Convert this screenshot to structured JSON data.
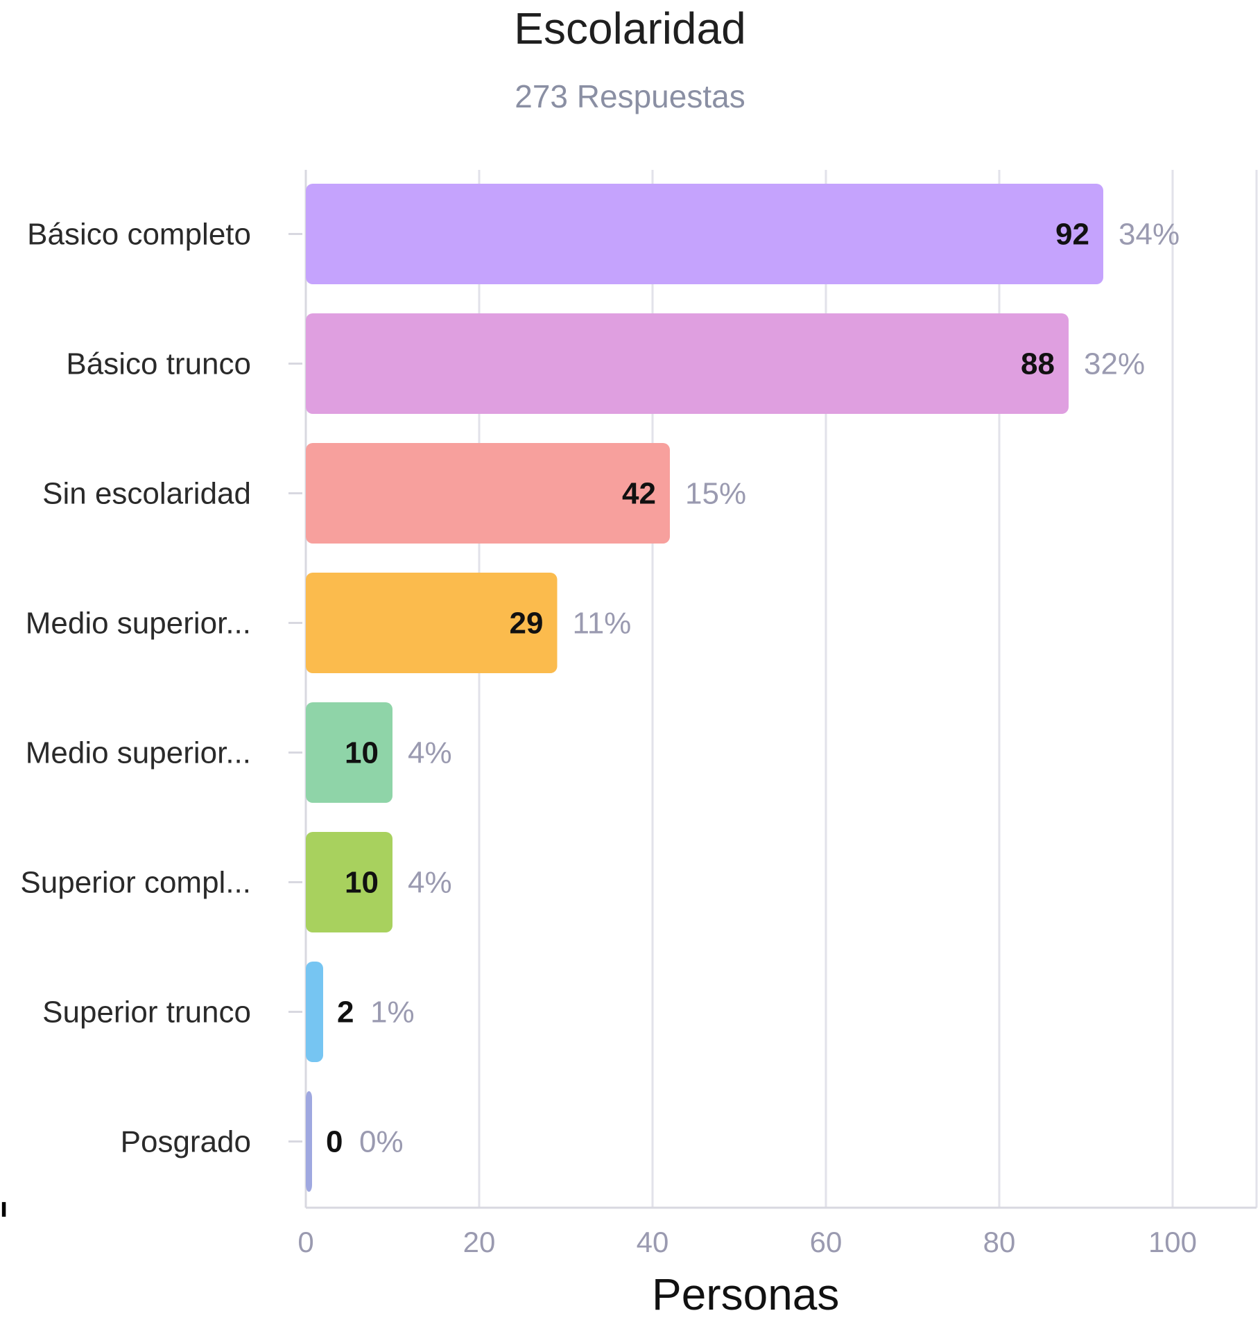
{
  "chart_data": {
    "type": "bar",
    "orientation": "horizontal",
    "title": "Escolaridad",
    "subtitle": "273 Respuestas",
    "xlabel": "Personas",
    "ylabel": "",
    "xlim": [
      0,
      110
    ],
    "xticks": [
      0,
      20,
      40,
      60,
      80,
      100
    ],
    "grid": true,
    "categories": [
      "Básico completo",
      "Básico trunco",
      "Sin escolaridad",
      "Medio superior...",
      "Medio superior...",
      "Superior compl...",
      "Superior trunco",
      "Posgrado"
    ],
    "values": [
      92,
      88,
      42,
      29,
      10,
      10,
      2,
      0
    ],
    "percent_labels": [
      "34%",
      "32%",
      "15%",
      "11%",
      "4%",
      "4%",
      "1%",
      "0%"
    ],
    "colors": [
      "#c5a3fd",
      "#df9fe0",
      "#f7a09d",
      "#fbbb4d",
      "#8fd4a8",
      "#a8d15e",
      "#76c5f2",
      "#9fa8e0"
    ]
  }
}
